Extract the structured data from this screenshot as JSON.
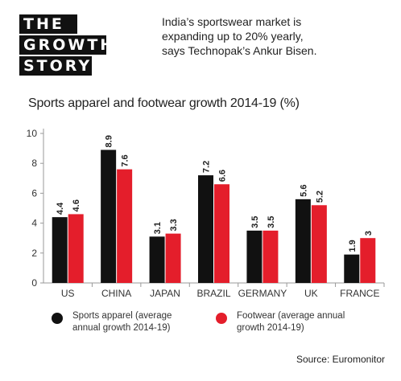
{
  "logo": {
    "line1": "THE",
    "line2": "GROWTH",
    "line3": "STORY"
  },
  "headline": "India’s sportswear market is expanding up to 20% yearly, says Technopak’s Ankur Bisen.",
  "colors": {
    "sports_apparel": "#111111",
    "footwear": "#e41e2b"
  },
  "chart_data": {
    "type": "bar",
    "title": "Sports apparel and footwear growth 2014-19 (%)",
    "categories": [
      "US",
      "CHINA",
      "JAPAN",
      "BRAZIL",
      "GERMANY",
      "UK",
      "FRANCE"
    ],
    "series": [
      {
        "name": "Sports apparel (average annual growth 2014-19)",
        "values": [
          4.4,
          8.9,
          3.1,
          7.2,
          3.5,
          5.6,
          1.9
        ],
        "labels": [
          "4.4",
          "8.9",
          "3.1",
          "7.2",
          "3.5",
          "5.6",
          "1.9"
        ]
      },
      {
        "name": "Footwear (average annual growth 2014-19)",
        "values": [
          4.6,
          7.6,
          3.3,
          6.6,
          3.5,
          5.2,
          3
        ],
        "labels": [
          "4.6",
          "7.6",
          "3.3",
          "6.6",
          "3.5",
          "5.2",
          "3"
        ]
      }
    ],
    "ylim": [
      0,
      10
    ],
    "yticks": [
      0,
      2,
      4,
      6,
      8,
      10
    ],
    "grid": false,
    "legend": "bottom"
  },
  "source": "Source: Euromonitor"
}
